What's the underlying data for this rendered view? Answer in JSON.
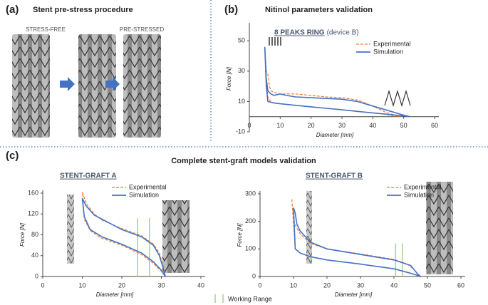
{
  "panels": [
    {
      "label": "(a)",
      "title": "Stent pre-stress procedure",
      "labels": [
        "STRESS-FREE",
        "PRE-STRESSED"
      ]
    },
    {
      "label": "(b)",
      "title": "Nitinol parameters validation"
    },
    {
      "label": "(c)",
      "title": "Complete stent-graft models validation",
      "legend": "Working Range"
    }
  ],
  "chart_data": [
    {
      "type": "line",
      "title": "8 PEAKS RING",
      "subtitle": "(device B)",
      "x_label": "Diameter [mm]",
      "y_label": "Force [N]",
      "xlim": [
        0,
        60
      ],
      "xticks": [
        0,
        10,
        20,
        30,
        40,
        50,
        60
      ],
      "ylim": [
        -10,
        60
      ],
      "yticks": [
        -10,
        10,
        30,
        50
      ],
      "series": [
        {
          "name": "Experimental",
          "color": "#ed7d31",
          "dashed": true,
          "x": [
            5,
            5.5,
            6,
            6.5,
            7,
            8,
            10,
            12,
            15,
            20,
            25,
            30,
            35,
            40,
            44,
            47,
            49,
            47,
            44,
            40,
            35,
            30,
            25,
            20,
            15,
            10,
            7,
            6,
            5.5,
            5
          ],
          "values": [
            45,
            30,
            28,
            20,
            17,
            16,
            15,
            15,
            15,
            14,
            13,
            12.5,
            11,
            7,
            3,
            1,
            0,
            0.5,
            1.5,
            2.5,
            3.5,
            4.5,
            5.5,
            6.5,
            7.5,
            8.5,
            9.5,
            13,
            25,
            45
          ]
        },
        {
          "name": "Simulation",
          "color": "#4472c4",
          "dashed": false,
          "x": [
            5,
            5.5,
            6,
            7,
            8,
            9,
            10,
            12,
            15,
            20,
            25,
            30,
            35,
            40,
            45,
            50,
            52,
            50,
            45,
            40,
            35,
            30,
            25,
            20,
            15,
            10,
            8,
            6,
            5.5,
            5
          ],
          "values": [
            46,
            25,
            17,
            15,
            14,
            14.5,
            15,
            14,
            13,
            12.5,
            12,
            11.5,
            10,
            7,
            4,
            1,
            0,
            0.5,
            1.5,
            2.5,
            3.5,
            4.5,
            5.5,
            6.5,
            7.5,
            8.5,
            9,
            10,
            20,
            46
          ]
        }
      ]
    },
    {
      "type": "line",
      "title": "STENT-GRAFT A",
      "x_label": "Diameter [mm]",
      "y_label": "Force [N]",
      "xlim": [
        0,
        40
      ],
      "xticks": [
        0,
        10,
        20,
        30,
        40
      ],
      "ylim": [
        0,
        160
      ],
      "yticks": [
        0,
        40,
        80,
        120,
        160
      ],
      "working_range": [
        24,
        27
      ],
      "series": [
        {
          "name": "Experimental",
          "color": "#ed7d31",
          "dashed": true,
          "x": [
            10,
            11,
            13,
            15,
            20,
            25,
            28,
            29.5,
            30.5,
            31,
            30,
            28,
            25,
            20,
            15,
            12,
            10.5,
            10
          ],
          "values": [
            162,
            140,
            120,
            108,
            92,
            78,
            62,
            45,
            20,
            0,
            10,
            25,
            42,
            60,
            73,
            88,
            110,
            162
          ]
        },
        {
          "name": "Simulation",
          "color": "#4472c4",
          "dashed": false,
          "x": [
            10,
            11,
            13,
            15,
            20,
            25,
            28,
            29.5,
            30.5,
            31,
            30,
            28,
            25,
            20,
            15,
            12,
            10.5,
            10
          ],
          "values": [
            150,
            135,
            118,
            110,
            90,
            76,
            60,
            40,
            15,
            0,
            12,
            28,
            45,
            62,
            76,
            90,
            115,
            150
          ]
        }
      ]
    },
    {
      "type": "line",
      "title": "STENT-GRAFT B",
      "x_label": "Diameter [mm]",
      "y_label": "Force [N]",
      "xlim": [
        0,
        60
      ],
      "xticks": [
        0,
        10,
        20,
        30,
        40,
        50,
        60
      ],
      "ylim": [
        0,
        300
      ],
      "yticks": [
        0,
        100,
        200,
        300
      ],
      "working_range": [
        40.5,
        42.5
      ],
      "series": [
        {
          "name": "Experimental",
          "color": "#ed7d31",
          "dashed": true,
          "x": [
            9.5,
            10,
            11,
            12,
            15,
            20,
            30,
            40,
            44,
            46,
            47.5,
            46,
            44,
            40,
            30,
            20,
            15,
            12,
            10.5,
            9.5
          ],
          "values": [
            280,
            200,
            175,
            155,
            120,
            100,
            82,
            62,
            45,
            25,
            0,
            8,
            15,
            28,
            45,
            60,
            72,
            85,
            100,
            280
          ]
        },
        {
          "name": "Simulation",
          "color": "#4472c4",
          "dashed": false,
          "x": [
            10,
            10.5,
            11,
            12,
            15,
            20,
            30,
            40,
            45,
            47,
            48,
            46,
            44,
            40,
            30,
            20,
            15,
            12,
            10.5,
            10
          ],
          "values": [
            250,
            230,
            190,
            165,
            125,
            100,
            80,
            60,
            40,
            10,
            0,
            8,
            15,
            28,
            45,
            60,
            72,
            85,
            100,
            250
          ]
        }
      ]
    }
  ]
}
